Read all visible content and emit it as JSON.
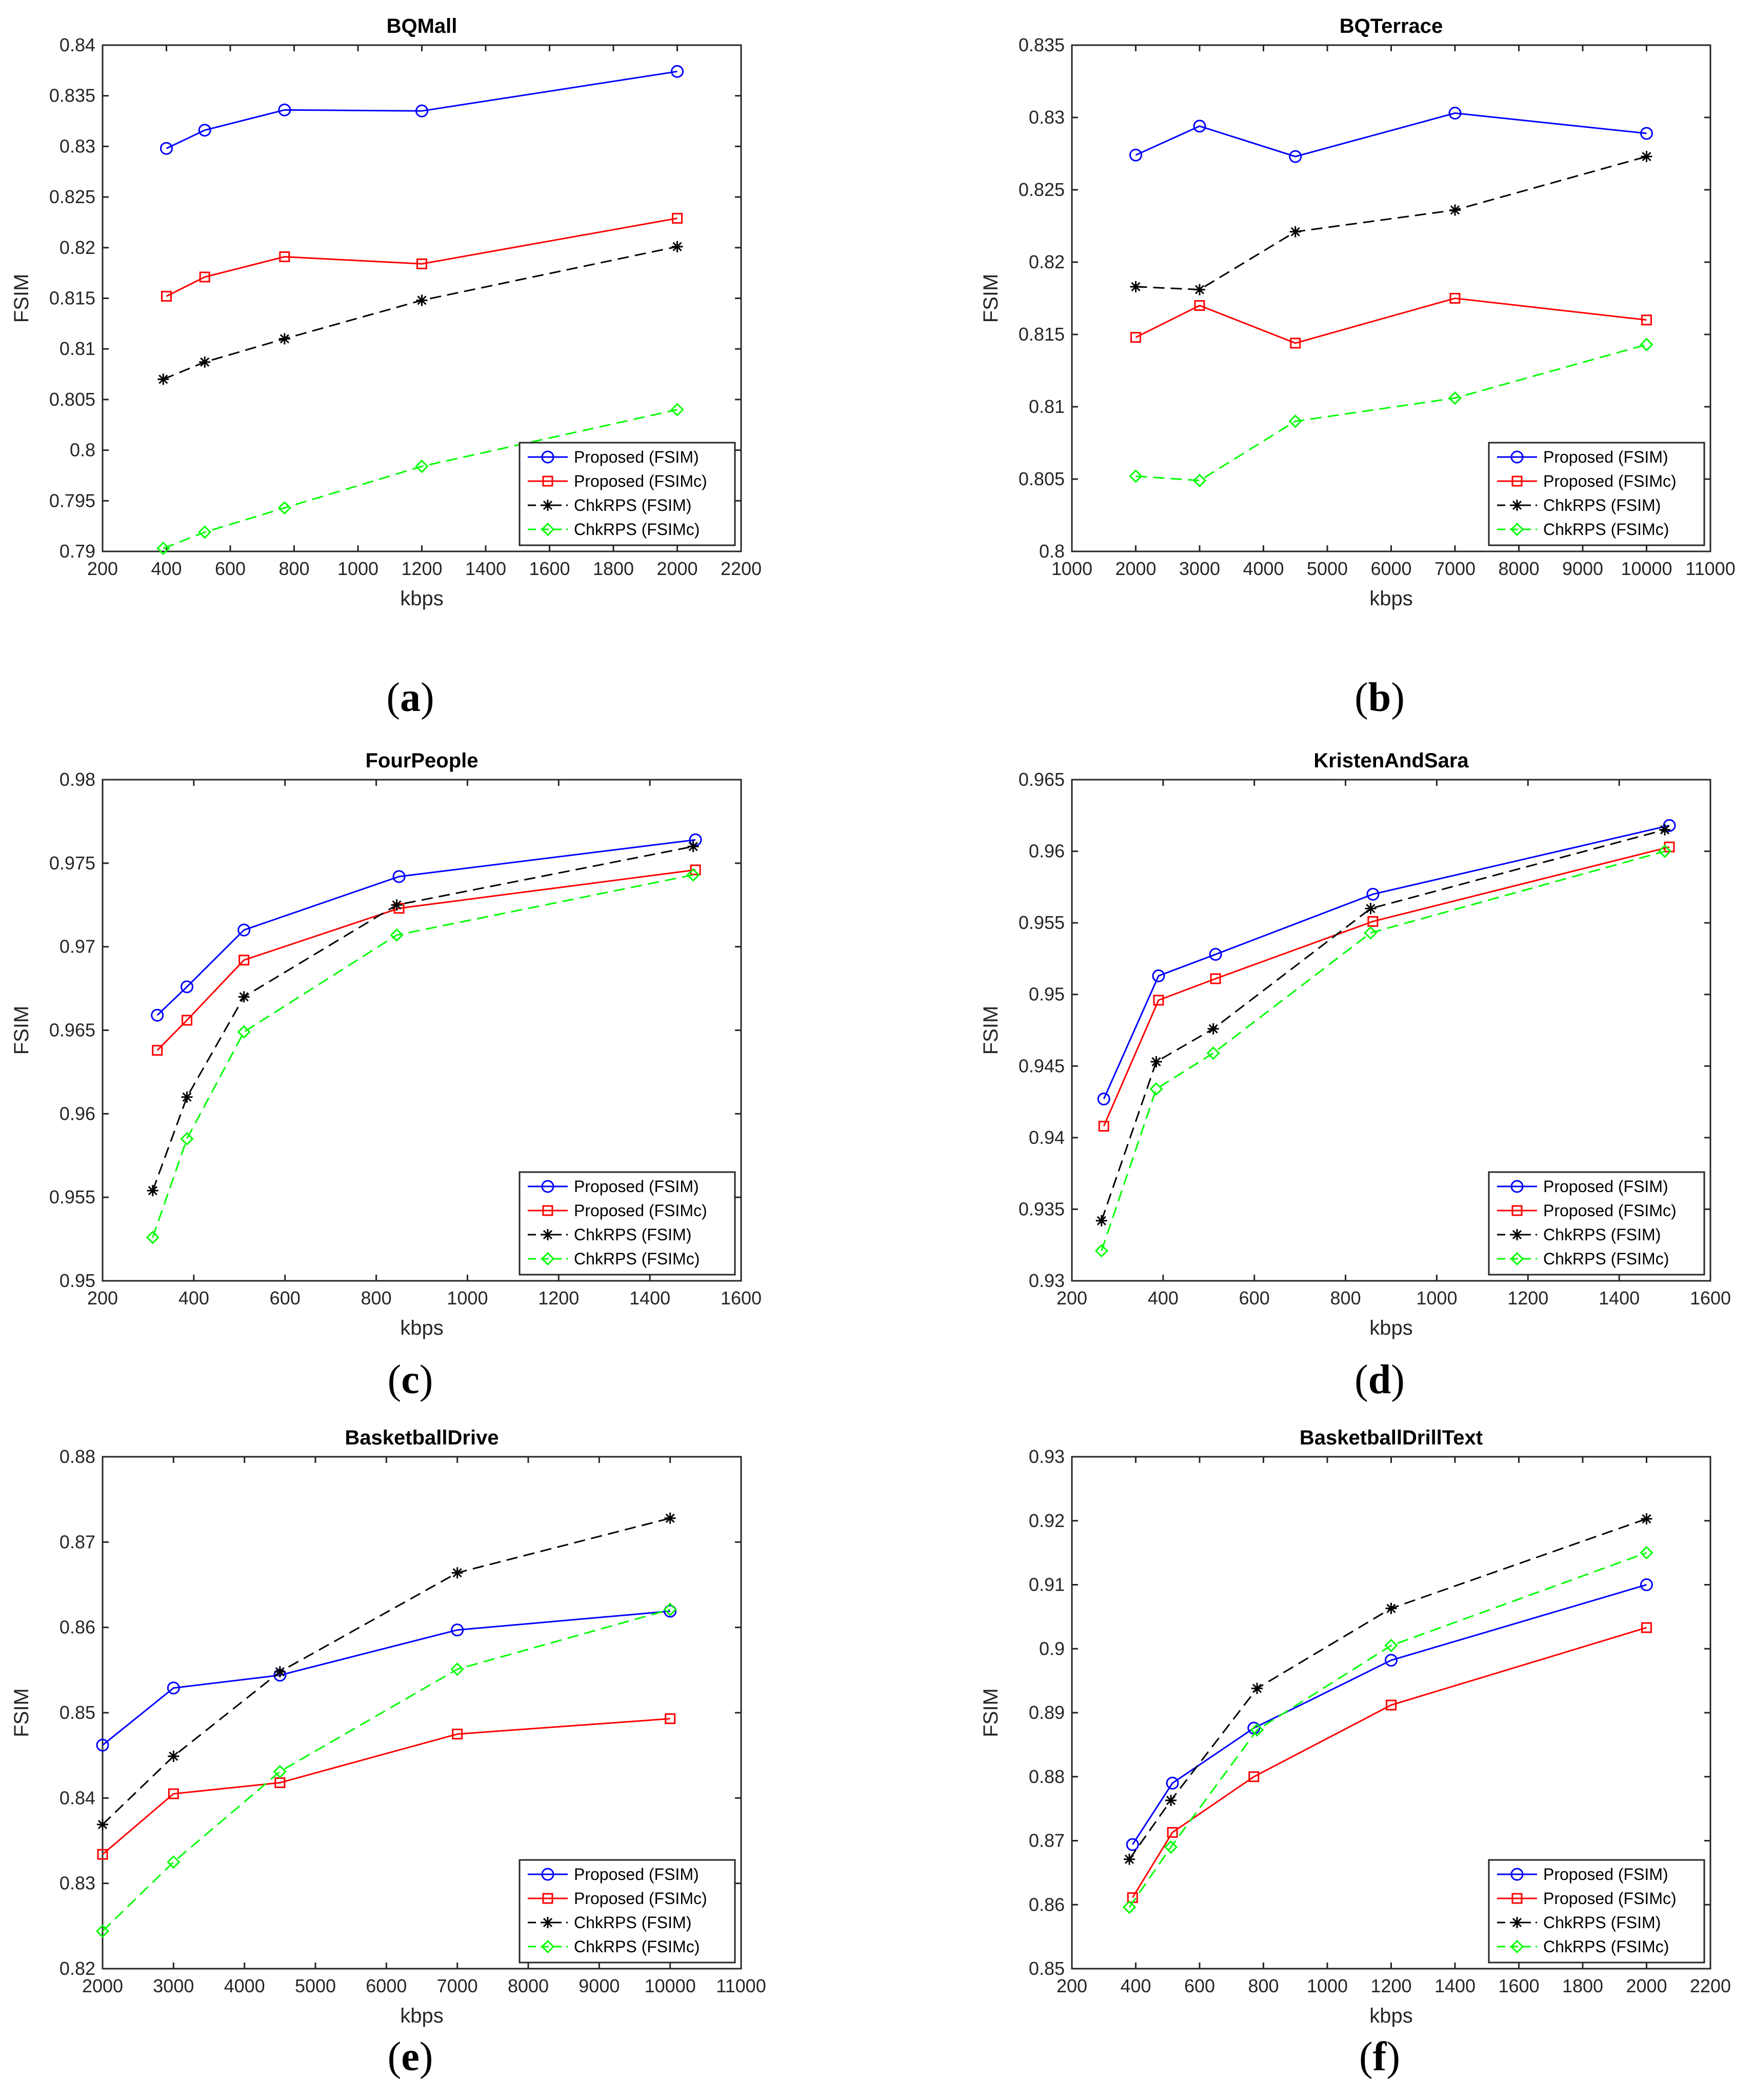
{
  "chart_data": [
    {
      "type": "line",
      "caption": "a",
      "title": "BQMall",
      "xlabel": "kbps",
      "ylabel": "FSIM",
      "xlim": [
        200,
        2200
      ],
      "ylim": [
        0.79,
        0.84
      ],
      "xticks": [
        "200",
        "400",
        "600",
        "800",
        "1000",
        "1200",
        "1400",
        "1600",
        "1800",
        "2000",
        "2200"
      ],
      "yticks": [
        "0.79",
        "0.795",
        "0.8",
        "0.805",
        "0.81",
        "0.815",
        "0.82",
        "0.825",
        "0.83",
        "0.835",
        "0.84"
      ],
      "legend_position": "bottom-right",
      "series": [
        {
          "name": "Proposed (FSIM)",
          "color": "#0000ff",
          "marker": "circle",
          "dash": "solid",
          "x": [
            400,
            520,
            770,
            1200,
            2000
          ],
          "y": [
            0.8298,
            0.8316,
            0.8336,
            0.8335,
            0.8374
          ]
        },
        {
          "name": "Proposed (FSIMc)",
          "color": "#ff0000",
          "marker": "square",
          "dash": "solid",
          "x": [
            400,
            520,
            770,
            1200,
            2000
          ],
          "y": [
            0.8152,
            0.8171,
            0.8191,
            0.8184,
            0.8229
          ]
        },
        {
          "name": "ChkRPS (FSIM)",
          "color": "#000000",
          "marker": "star",
          "dash": "dash",
          "x": [
            390,
            520,
            770,
            1200,
            2000
          ],
          "y": [
            0.807,
            0.8087,
            0.811,
            0.8148,
            0.8201
          ]
        },
        {
          "name": "ChkRPS (FSIMc)",
          "color": "#00ff00",
          "marker": "diamond",
          "dash": "dash",
          "x": [
            390,
            520,
            770,
            1200,
            2000
          ],
          "y": [
            0.7903,
            0.7919,
            0.7943,
            0.7984,
            0.804
          ]
        }
      ]
    },
    {
      "type": "line",
      "caption": "b",
      "title": "BQTerrace",
      "xlabel": "kbps",
      "ylabel": "FSIM",
      "xlim": [
        1000,
        11000
      ],
      "ylim": [
        0.8,
        0.835
      ],
      "xticks": [
        "1000",
        "2000",
        "3000",
        "4000",
        "5000",
        "6000",
        "7000",
        "8000",
        "9000",
        "10000",
        "11000"
      ],
      "yticks": [
        "0.8",
        "0.805",
        "0.81",
        "0.815",
        "0.82",
        "0.825",
        "0.83",
        "0.835"
      ],
      "legend_position": "bottom-right",
      "series": [
        {
          "name": "Proposed (FSIM)",
          "color": "#0000ff",
          "marker": "circle",
          "dash": "solid",
          "x": [
            2000,
            3000,
            4500,
            7000,
            10000
          ],
          "y": [
            0.8274,
            0.8294,
            0.8273,
            0.8303,
            0.8289
          ]
        },
        {
          "name": "Proposed (FSIMc)",
          "color": "#ff0000",
          "marker": "square",
          "dash": "solid",
          "x": [
            2000,
            3000,
            4500,
            7000,
            10000
          ],
          "y": [
            0.8148,
            0.817,
            0.8144,
            0.8175,
            0.816
          ]
        },
        {
          "name": "ChkRPS (FSIM)",
          "color": "#000000",
          "marker": "star",
          "dash": "dash",
          "x": [
            2000,
            3000,
            4500,
            7000,
            10000
          ],
          "y": [
            0.8183,
            0.8181,
            0.8221,
            0.8236,
            0.8273
          ]
        },
        {
          "name": "ChkRPS (FSIMc)",
          "color": "#00ff00",
          "marker": "diamond",
          "dash": "dash",
          "x": [
            2000,
            3000,
            4500,
            7000,
            10000
          ],
          "y": [
            0.8052,
            0.8049,
            0.809,
            0.8106,
            0.8143
          ]
        }
      ]
    },
    {
      "type": "line",
      "caption": "c",
      "title": "FourPeople",
      "xlabel": "kbps",
      "ylabel": "FSIM",
      "xlim": [
        200,
        1600
      ],
      "ylim": [
        0.95,
        0.98
      ],
      "xticks": [
        "200",
        "400",
        "600",
        "800",
        "1000",
        "1200",
        "1400",
        "1600"
      ],
      "yticks": [
        "0.95",
        "0.955",
        "0.96",
        "0.965",
        "0.97",
        "0.975",
        "0.98"
      ],
      "legend_position": "bottom-right",
      "series": [
        {
          "name": "Proposed (FSIM)",
          "color": "#0000ff",
          "marker": "circle",
          "dash": "solid",
          "x": [
            320,
            385,
            510,
            850,
            1500
          ],
          "y": [
            0.9659,
            0.9676,
            0.971,
            0.9742,
            0.9764
          ]
        },
        {
          "name": "Proposed (FSIMc)",
          "color": "#ff0000",
          "marker": "square",
          "dash": "solid",
          "x": [
            320,
            385,
            510,
            850,
            1500
          ],
          "y": [
            0.9638,
            0.9656,
            0.9692,
            0.9723,
            0.9746
          ]
        },
        {
          "name": "ChkRPS (FSIM)",
          "color": "#000000",
          "marker": "star",
          "dash": "dash",
          "x": [
            310,
            385,
            510,
            845,
            1495
          ],
          "y": [
            0.9554,
            0.961,
            0.967,
            0.9725,
            0.976
          ]
        },
        {
          "name": "ChkRPS (FSIMc)",
          "color": "#00ff00",
          "marker": "diamond",
          "dash": "dash",
          "x": [
            310,
            385,
            510,
            845,
            1495
          ],
          "y": [
            0.9526,
            0.9585,
            0.9649,
            0.9707,
            0.9743
          ]
        }
      ]
    },
    {
      "type": "line",
      "caption": "d",
      "title": "KristenAndSara",
      "xlabel": "kbps",
      "ylabel": "FSIM",
      "xlim": [
        200,
        1600
      ],
      "ylim": [
        0.93,
        0.965
      ],
      "xticks": [
        "200",
        "400",
        "600",
        "800",
        "1000",
        "1200",
        "1400",
        "1600"
      ],
      "yticks": [
        "0.93",
        "0.935",
        "0.94",
        "0.945",
        "0.95",
        "0.955",
        "0.96",
        "0.965"
      ],
      "legend_position": "bottom-right",
      "series": [
        {
          "name": "Proposed (FSIM)",
          "color": "#0000ff",
          "marker": "circle",
          "dash": "solid",
          "x": [
            270,
            390,
            515,
            860,
            1510
          ],
          "y": [
            0.9427,
            0.9513,
            0.9528,
            0.957,
            0.9618
          ]
        },
        {
          "name": "Proposed (FSIMc)",
          "color": "#ff0000",
          "marker": "square",
          "dash": "solid",
          "x": [
            270,
            390,
            515,
            860,
            1510
          ],
          "y": [
            0.9408,
            0.9496,
            0.9511,
            0.9551,
            0.9603
          ]
        },
        {
          "name": "ChkRPS (FSIM)",
          "color": "#000000",
          "marker": "star",
          "dash": "dash",
          "x": [
            265,
            385,
            510,
            855,
            1500
          ],
          "y": [
            0.9342,
            0.9453,
            0.9476,
            0.956,
            0.9615
          ]
        },
        {
          "name": "ChkRPS (FSIMc)",
          "color": "#00ff00",
          "marker": "diamond",
          "dash": "dash",
          "x": [
            265,
            385,
            510,
            855,
            1500
          ],
          "y": [
            0.9321,
            0.9434,
            0.9459,
            0.9543,
            0.96
          ]
        }
      ]
    },
    {
      "type": "line",
      "caption": "e",
      "title": "BasketballDrive",
      "xlabel": "kbps",
      "ylabel": "FSIM",
      "xlim": [
        2000,
        11000
      ],
      "ylim": [
        0.82,
        0.88
      ],
      "xticks": [
        "2000",
        "3000",
        "4000",
        "5000",
        "6000",
        "7000",
        "8000",
        "9000",
        "10000",
        "11000"
      ],
      "yticks": [
        "0.82",
        "0.83",
        "0.84",
        "0.85",
        "0.86",
        "0.87",
        "0.88"
      ],
      "legend_position": "bottom-right",
      "series": [
        {
          "name": "Proposed (FSIM)",
          "color": "#0000ff",
          "marker": "circle",
          "dash": "solid",
          "x": [
            2000,
            3000,
            4500,
            7000,
            10000
          ],
          "y": [
            0.8462,
            0.8529,
            0.8544,
            0.8597,
            0.8619
          ]
        },
        {
          "name": "Proposed (FSIMc)",
          "color": "#ff0000",
          "marker": "square",
          "dash": "solid",
          "x": [
            2000,
            3000,
            4500,
            7000,
            10000
          ],
          "y": [
            0.8334,
            0.8405,
            0.8418,
            0.8475,
            0.8493
          ]
        },
        {
          "name": "ChkRPS (FSIM)",
          "color": "#000000",
          "marker": "star",
          "dash": "dash",
          "x": [
            2000,
            3000,
            4500,
            7000,
            10000
          ],
          "y": [
            0.8369,
            0.8449,
            0.8548,
            0.8664,
            0.8728
          ]
        },
        {
          "name": "ChkRPS (FSIMc)",
          "color": "#00ff00",
          "marker": "diamond",
          "dash": "dash",
          "x": [
            2000,
            3000,
            4500,
            7000,
            10000
          ],
          "y": [
            0.8244,
            0.8325,
            0.8431,
            0.8551,
            0.8621
          ]
        }
      ]
    },
    {
      "type": "line",
      "caption": "f",
      "title": "BasketballDrillText",
      "xlabel": "kbps",
      "ylabel": "FSIM",
      "xlim": [
        200,
        2200
      ],
      "ylim": [
        0.85,
        0.93
      ],
      "xticks": [
        "200",
        "400",
        "600",
        "800",
        "1000",
        "1200",
        "1400",
        "1600",
        "1800",
        "2000",
        "2200"
      ],
      "yticks": [
        "0.85",
        "0.86",
        "0.87",
        "0.88",
        "0.89",
        "0.9",
        "0.91",
        "0.92",
        "0.93"
      ],
      "legend_position": "bottom-right",
      "series": [
        {
          "name": "Proposed (FSIM)",
          "color": "#0000ff",
          "marker": "circle",
          "dash": "solid",
          "x": [
            390,
            515,
            770,
            1200,
            2000
          ],
          "y": [
            0.8694,
            0.879,
            0.8876,
            0.8982,
            0.91
          ]
        },
        {
          "name": "Proposed (FSIMc)",
          "color": "#ff0000",
          "marker": "square",
          "dash": "solid",
          "x": [
            390,
            515,
            770,
            1200,
            2000
          ],
          "y": [
            0.8611,
            0.8713,
            0.88,
            0.8912,
            0.9033
          ]
        },
        {
          "name": "ChkRPS (FSIM)",
          "color": "#000000",
          "marker": "star",
          "dash": "dash",
          "x": [
            380,
            510,
            780,
            1200,
            2000
          ],
          "y": [
            0.8671,
            0.8763,
            0.8938,
            0.9063,
            0.9203
          ]
        },
        {
          "name": "ChkRPS (FSIMc)",
          "color": "#00ff00",
          "marker": "diamond",
          "dash": "dash",
          "x": [
            380,
            510,
            780,
            1200,
            2000
          ],
          "y": [
            0.8596,
            0.869,
            0.8873,
            0.9005,
            0.915
          ]
        }
      ]
    }
  ]
}
